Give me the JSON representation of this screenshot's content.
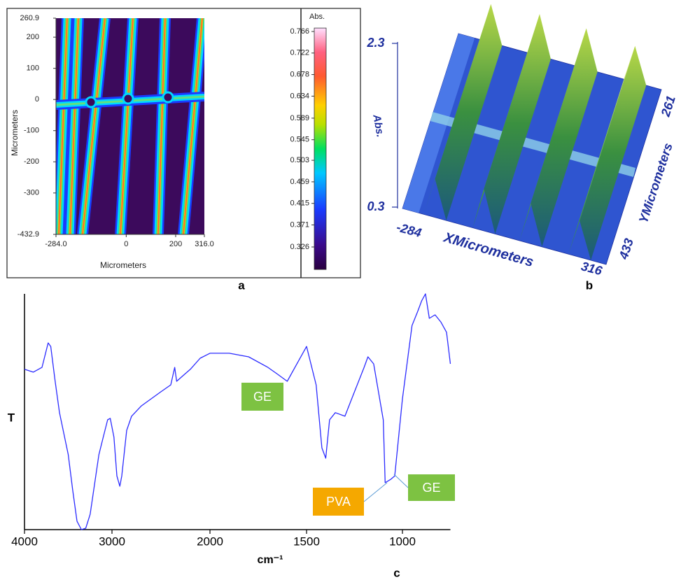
{
  "chart_data": [
    {
      "type": "heatmap",
      "panel_label": "a",
      "xlabel": "Micrometers",
      "ylabel": "Micrometers",
      "xlim": [
        -284,
        316
      ],
      "ylim": [
        -432.9,
        260.9
      ],
      "xticks": [
        {
          "value": -284,
          "label": "-284.0"
        },
        0,
        200,
        {
          "value": 316,
          "label": "316.0"
        }
      ],
      "yticks": [
        260.9,
        200,
        100,
        0,
        -100,
        -200,
        -300,
        -432.9
      ],
      "colorbar_title": "Abs.",
      "clim": [
        0.28,
        0.773
      ],
      "colorbar_ticks": [
        0.766,
        0.722,
        0.678,
        0.634,
        0.589,
        0.545,
        0.503,
        0.459,
        0.415,
        0.371,
        0.326
      ]
    },
    {
      "type": "surface3d",
      "panel_label": "b",
      "zlabel": "Abs.",
      "zticks": [
        2.3,
        0.3
      ],
      "xlabel": "XMicrometers",
      "xticks": [
        -284,
        316
      ],
      "ylabel": "YMicrometers",
      "yticks": [
        261,
        433
      ]
    },
    {
      "type": "line",
      "panel_label": "c",
      "xlabel": "cm⁻¹",
      "ylabel": "T",
      "xlim": [
        4000,
        750
      ],
      "xticks": [
        4000,
        3000,
        2000,
        1500,
        1000
      ],
      "ylim": [
        0,
        100
      ],
      "color": "#2b2bff",
      "x": [
        4000,
        3900,
        3800,
        3730,
        3700,
        3650,
        3600,
        3500,
        3450,
        3400,
        3350,
        3300,
        3250,
        3150,
        3100,
        3050,
        3020,
        2980,
        2950,
        2920,
        2900,
        2850,
        2800,
        2700,
        2600,
        2500,
        2400,
        2360,
        2340,
        2300,
        2200,
        2100,
        2000,
        1900,
        1800,
        1700,
        1650,
        1600,
        1550,
        1500,
        1450,
        1420,
        1400,
        1380,
        1350,
        1300,
        1250,
        1200,
        1180,
        1150,
        1100,
        1090,
        1060,
        1040,
        1000,
        950,
        920,
        900,
        880,
        860,
        830,
        800,
        770,
        750
      ],
      "values": [
        68.0,
        66.8,
        68.8,
        79.2,
        77.7,
        62.9,
        49.6,
        31.8,
        16.9,
        3.6,
        0,
        0.6,
        6.5,
        31.8,
        39.2,
        46.6,
        47.2,
        39.2,
        22.8,
        18.4,
        22.8,
        42.1,
        48.1,
        52.5,
        55.5,
        58.5,
        61.4,
        68.8,
        62.9,
        64.4,
        68.0,
        72.7,
        74.8,
        74.8,
        73.3,
        68.8,
        65.9,
        62.9,
        70.3,
        77.7,
        61.4,
        34.7,
        30.3,
        46.6,
        49.6,
        48.1,
        58.5,
        68.8,
        73.3,
        70.3,
        46.6,
        19.9,
        21.4,
        22.8,
        55.5,
        86.6,
        92.6,
        97.0,
        100,
        89.6,
        91.1,
        88.1,
        83.7,
        70.3
      ],
      "annotations": [
        {
          "text": "GE"
        },
        {
          "text": "PVA"
        },
        {
          "text": "GE"
        }
      ]
    }
  ]
}
